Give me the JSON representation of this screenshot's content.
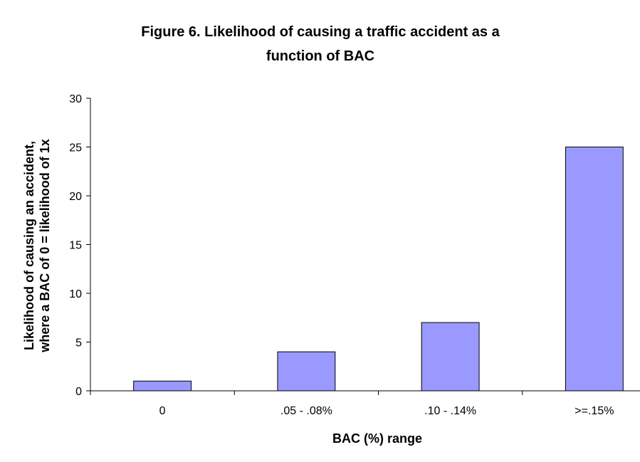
{
  "chart_data": {
    "type": "bar",
    "title_lines": [
      "Figure 6.  Likelihood of causing a traffic accident as a",
      "function of BAC"
    ],
    "xlabel": "BAC (%) range",
    "ylabel_lines": [
      "Likelihood of causing an accident,",
      "where a BAC of 0 = likelihood of 1x"
    ],
    "categories": [
      "0",
      ".05 - .08%",
      ".10 - .14%",
      ">=.15%"
    ],
    "values": [
      1,
      4,
      7,
      25
    ],
    "ylim": [
      0,
      30
    ],
    "yticks": [
      0,
      5,
      10,
      15,
      20,
      25,
      30
    ],
    "grid": false,
    "legend": "none",
    "colors": {
      "bar_fill": "#9999ff",
      "bar_stroke": "#000000",
      "axis": "#000000"
    }
  }
}
